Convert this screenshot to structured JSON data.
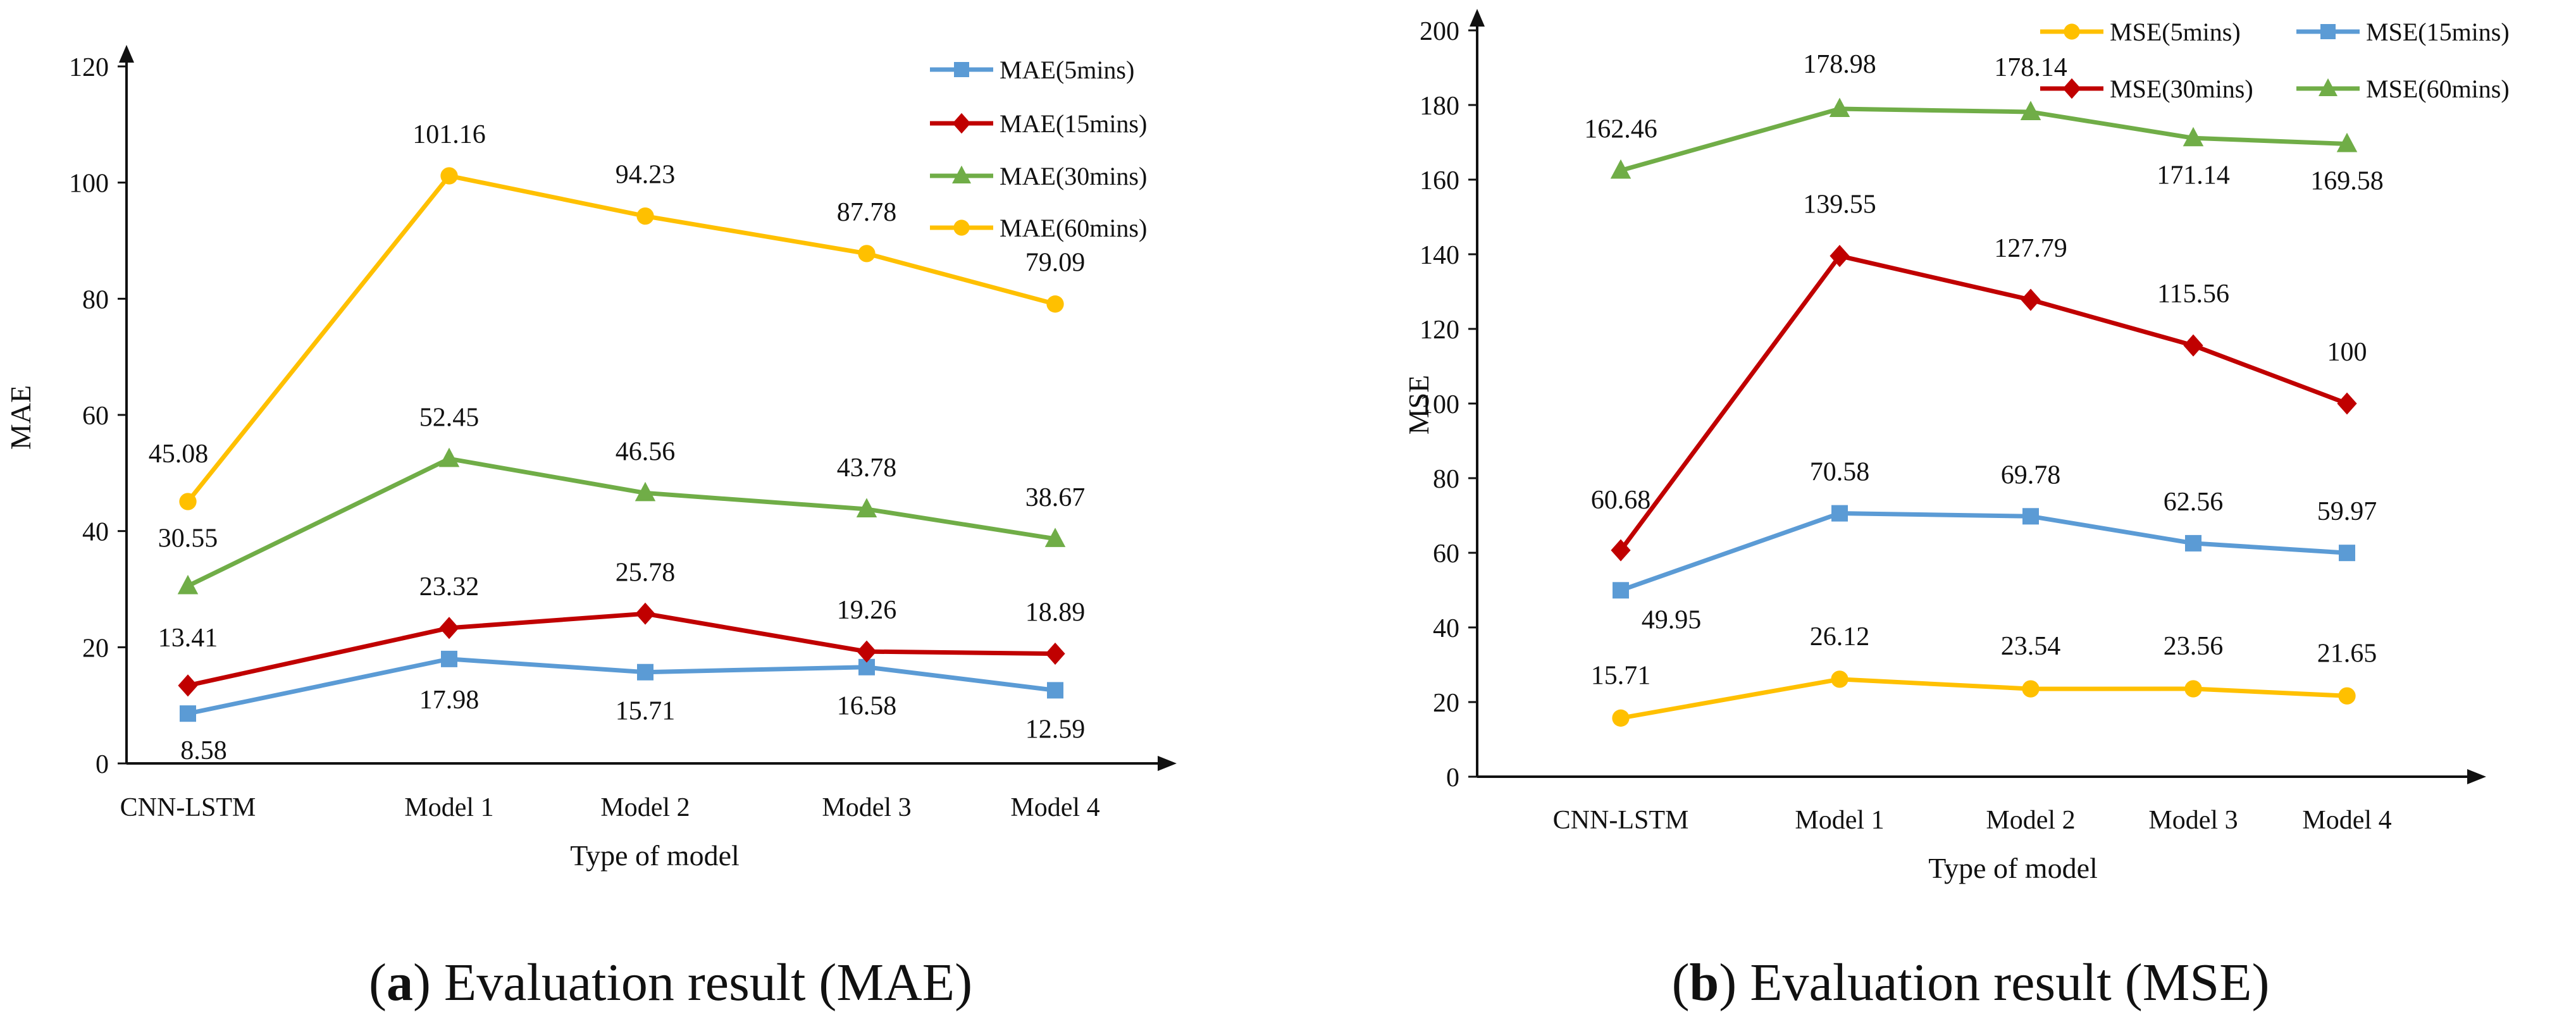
{
  "chart_data": [
    {
      "type": "line",
      "ylabel": "MAE",
      "xlabel": "Type of model",
      "ylim": [
        0,
        120
      ],
      "yticks": [
        0,
        20,
        40,
        60,
        80,
        100,
        120
      ],
      "categories": [
        "CNN-LSTM",
        "Model 1",
        "Model 2",
        "Model 3",
        "Model 4"
      ],
      "legend_position": "top-right",
      "series": [
        {
          "name": "MAE(5mins)",
          "color": "#5B9BD5",
          "marker": "square",
          "values": [
            8.58,
            17.98,
            15.71,
            16.58,
            12.59
          ]
        },
        {
          "name": "MAE(15mins)",
          "color": "#C00000",
          "marker": "diamond",
          "values": [
            13.41,
            23.32,
            25.78,
            19.26,
            18.89
          ]
        },
        {
          "name": "MAE(30mins)",
          "color": "#70AD47",
          "marker": "triangle",
          "values": [
            30.55,
            52.45,
            46.56,
            43.78,
            38.67
          ]
        },
        {
          "name": "MAE(60mins)",
          "color": "#FFC000",
          "marker": "circle",
          "values": [
            45.08,
            101.16,
            94.23,
            87.78,
            79.09
          ]
        }
      ]
    },
    {
      "type": "line",
      "ylabel": "MSE",
      "xlabel": "Type of model",
      "ylim": [
        0,
        200
      ],
      "yticks": [
        0,
        20,
        40,
        60,
        80,
        100,
        120,
        140,
        160,
        180,
        200
      ],
      "categories": [
        "CNN-LSTM",
        "Model 1",
        "Model 2",
        "Model 3",
        "Model 4"
      ],
      "legend_position": "top-right",
      "series": [
        {
          "name": "MSE(5mins)",
          "color": "#FFC000",
          "marker": "circle",
          "values": [
            15.71,
            26.12,
            23.54,
            23.56,
            21.65
          ]
        },
        {
          "name": "MSE(15mins)",
          "color": "#5B9BD5",
          "marker": "square",
          "values": [
            49.95,
            70.58,
            69.78,
            62.56,
            59.97
          ]
        },
        {
          "name": "MSE(30mins)",
          "color": "#C00000",
          "marker": "diamond",
          "values": [
            60.68,
            139.55,
            127.79,
            115.56,
            100
          ]
        },
        {
          "name": "MSE(60mins)",
          "color": "#70AD47",
          "marker": "triangle",
          "values": [
            162.46,
            178.98,
            178.14,
            171.14,
            169.58
          ]
        }
      ]
    }
  ],
  "captions": [
    {
      "letter": "a",
      "text": "Evaluation result (MAE)"
    },
    {
      "letter": "b",
      "text": "Evaluation result (MSE)"
    }
  ]
}
